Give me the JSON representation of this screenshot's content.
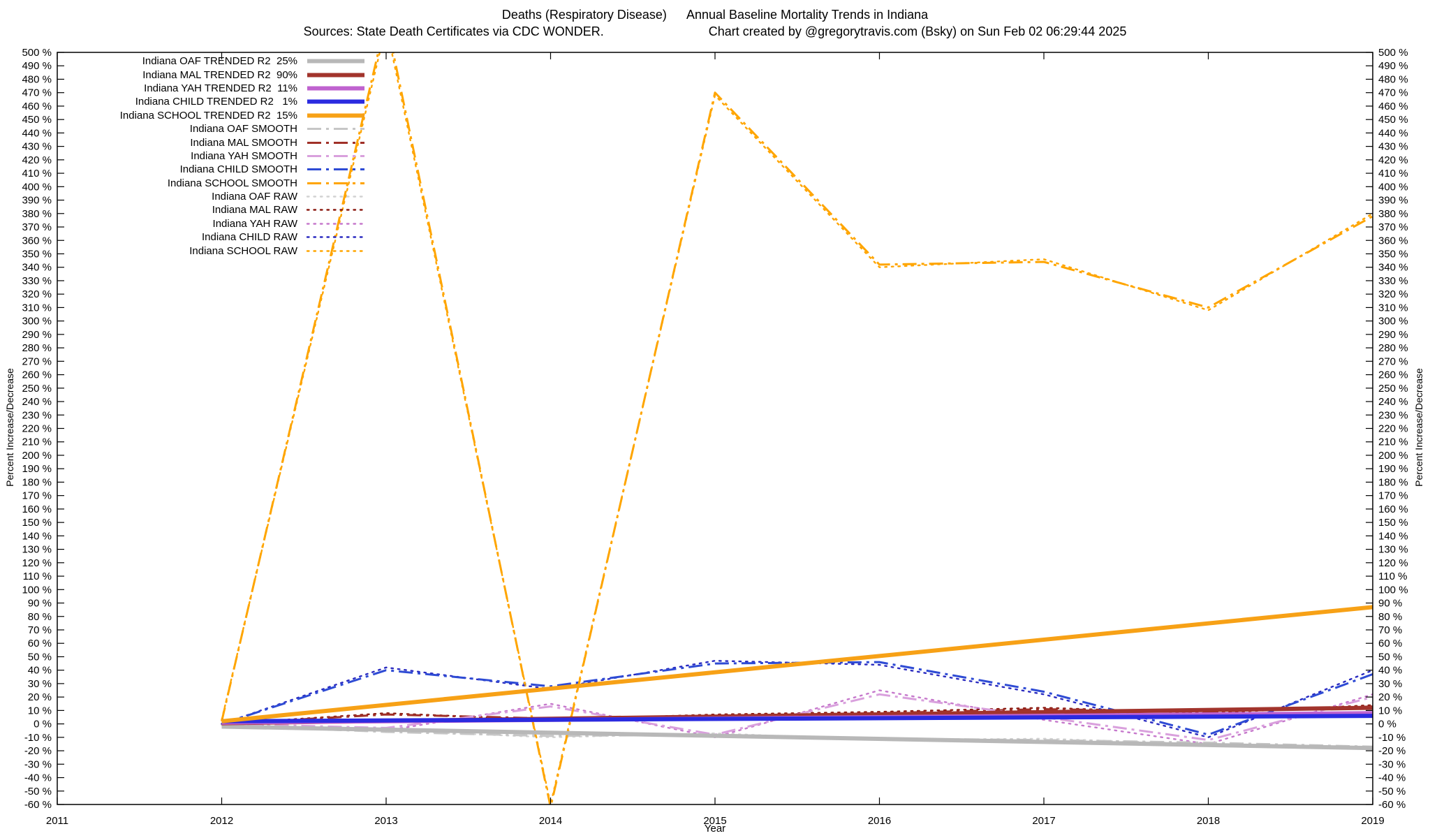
{
  "header": {
    "title_left": "Deaths (Respiratory Disease)",
    "title_right": "Annual Baseline Mortality Trends in Indiana",
    "subtitle_left": "Sources: State Death Certificates via CDC WONDER.",
    "subtitle_right": "Chart created by @gregorytravis.com (Bsky) on Sun Feb 02 06:29:44 2025"
  },
  "axes": {
    "ylabel_left": "Percent Increase/Decrease",
    "ylabel_right": "Percent Increase/Decrease",
    "xlabel": "Year"
  },
  "legend": {
    "items": [
      {
        "label": "Indiana OAF TRENDED R2  25%",
        "series": "oaf_trended"
      },
      {
        "label": "Indiana MAL TRENDED R2  90%",
        "series": "mal_trended"
      },
      {
        "label": "Indiana YAH TRENDED R2  11%",
        "series": "yah_trended"
      },
      {
        "label": "Indiana CHILD TRENDED R2   1%",
        "series": "child_trended"
      },
      {
        "label": "Indiana SCHOOL TRENDED R2  15%",
        "series": "school_trended"
      },
      {
        "label": "Indiana OAF SMOOTH",
        "series": "oaf_smooth"
      },
      {
        "label": "Indiana MAL SMOOTH",
        "series": "mal_smooth"
      },
      {
        "label": "Indiana YAH SMOOTH",
        "series": "yah_smooth"
      },
      {
        "label": "Indiana CHILD SMOOTH",
        "series": "child_smooth"
      },
      {
        "label": "Indiana SCHOOL SMOOTH",
        "series": "school_smooth"
      },
      {
        "label": "Indiana OAF RAW",
        "series": "oaf_raw"
      },
      {
        "label": "Indiana MAL RAW",
        "series": "mal_raw"
      },
      {
        "label": "Indiana YAH RAW",
        "series": "yah_raw"
      },
      {
        "label": "Indiana CHILD RAW",
        "series": "child_raw"
      },
      {
        "label": "Indiana SCHOOL RAW",
        "series": "school_raw"
      }
    ]
  },
  "chart_data": {
    "type": "line",
    "title": "Deaths (Respiratory Disease)  Annual Baseline Mortality Trends in Indiana",
    "subtitle": "Sources: State Death Certificates via CDC WONDER.  Chart created by @gregorytravis.com (Bsky) on Sun Feb 02 06:29:44 2025",
    "xlabel": "Year",
    "ylabel": "Percent Increase/Decrease",
    "xlim": [
      2011,
      2019
    ],
    "ylim": [
      -60,
      500
    ],
    "x_ticks": [
      2011,
      2012,
      2013,
      2014,
      2015,
      2016,
      2017,
      2018,
      2019
    ],
    "y_tick_step": 10,
    "y_tick_suffix": " %",
    "y_ticks": [
      500,
      490,
      480,
      470,
      460,
      450,
      440,
      430,
      420,
      410,
      400,
      390,
      380,
      370,
      360,
      350,
      340,
      330,
      320,
      310,
      300,
      290,
      280,
      270,
      260,
      250,
      240,
      230,
      220,
      210,
      200,
      190,
      180,
      170,
      160,
      150,
      140,
      130,
      120,
      110,
      100,
      90,
      80,
      70,
      60,
      50,
      40,
      30,
      20,
      10,
      0,
      -10,
      -20,
      -30,
      -40,
      -50,
      -60
    ],
    "grid": false,
    "legend_position": "top-left",
    "series": [
      {
        "name": "oaf_raw",
        "label": "Indiana OAF RAW",
        "group": "raw",
        "color": "#d2d2d2",
        "x": [
          2012,
          2013,
          2014,
          2015,
          2016,
          2017,
          2018,
          2019
        ],
        "y": [
          -1,
          -5,
          -10,
          -7,
          -12,
          -11,
          -15,
          -18
        ]
      },
      {
        "name": "mal_raw",
        "label": "Indiana MAL RAW",
        "group": "raw",
        "color": "#8b1a10",
        "x": [
          2012,
          2013,
          2014,
          2015,
          2016,
          2017,
          2018,
          2019
        ],
        "y": [
          0,
          8,
          3,
          7,
          9,
          12,
          8,
          14
        ]
      },
      {
        "name": "yah_raw",
        "label": "Indiana YAH RAW",
        "group": "raw",
        "color": "#c678cc",
        "x": [
          2012,
          2013,
          2014,
          2015,
          2016,
          2017,
          2018,
          2019
        ],
        "y": [
          0,
          -5,
          15,
          -10,
          25,
          3,
          -15,
          22
        ]
      },
      {
        "name": "child_raw",
        "label": "Indiana CHILD RAW",
        "group": "raw",
        "color": "#2a2ac0",
        "x": [
          2012,
          2013,
          2014,
          2015,
          2016,
          2017,
          2018,
          2019
        ],
        "y": [
          0,
          42,
          26,
          47,
          44,
          22,
          -10,
          40
        ]
      },
      {
        "name": "school_raw",
        "label": "Indiana SCHOOL RAW",
        "group": "raw",
        "color": "#ffa500",
        "x": [
          2012,
          2013,
          2014,
          2015,
          2016,
          2017,
          2018,
          2019
        ],
        "y": [
          3,
          520,
          -60,
          468,
          340,
          346,
          308,
          380
        ]
      },
      {
        "name": "oaf_smooth",
        "label": "Indiana OAF SMOOTH",
        "group": "smooth",
        "color": "#c6c6c6",
        "x": [
          2012,
          2013,
          2014,
          2015,
          2016,
          2017,
          2018,
          2019
        ],
        "y": [
          -1,
          -6,
          -9,
          -8,
          -11,
          -12,
          -14,
          -17
        ]
      },
      {
        "name": "mal_smooth",
        "label": "Indiana MAL SMOOTH",
        "group": "smooth",
        "color": "#a03028",
        "x": [
          2012,
          2013,
          2014,
          2015,
          2016,
          2017,
          2018,
          2019
        ],
        "y": [
          0,
          7,
          4,
          6,
          8,
          11,
          9,
          13
        ]
      },
      {
        "name": "yah_smooth",
        "label": "Indiana YAH SMOOTH",
        "group": "smooth",
        "color": "#d9a0dd",
        "x": [
          2012,
          2013,
          2014,
          2015,
          2016,
          2017,
          2018,
          2019
        ],
        "y": [
          0,
          -3,
          13,
          -8,
          22,
          5,
          -12,
          20
        ]
      },
      {
        "name": "child_smooth",
        "label": "Indiana CHILD SMOOTH",
        "group": "smooth",
        "color": "#2e4bd4",
        "x": [
          2012,
          2013,
          2014,
          2015,
          2016,
          2017,
          2018,
          2019
        ],
        "y": [
          0,
          40,
          28,
          45,
          46,
          24,
          -8,
          37
        ]
      },
      {
        "name": "school_smooth",
        "label": "Indiana SCHOOL SMOOTH",
        "group": "smooth",
        "color": "#ffa500",
        "x": [
          2012,
          2013,
          2014,
          2015,
          2016,
          2017,
          2018,
          2019
        ],
        "y": [
          2,
          525,
          -62,
          470,
          342,
          344,
          310,
          378
        ]
      },
      {
        "name": "oaf_trended",
        "label": "Indiana OAF TRENDED R2  25%",
        "group": "trended",
        "color": "#b8b8b8",
        "x": [
          2012,
          2019
        ],
        "y": [
          -2,
          -18
        ]
      },
      {
        "name": "mal_trended",
        "label": "Indiana MAL TRENDED R2  90%",
        "group": "trended",
        "color": "#a2342c",
        "x": [
          2012,
          2019
        ],
        "y": [
          0.5,
          12
        ]
      },
      {
        "name": "yah_trended",
        "label": "Indiana YAH TRENDED R2  11%",
        "group": "trended",
        "color": "#bf62cf",
        "x": [
          2012,
          2019
        ],
        "y": [
          1,
          8
        ]
      },
      {
        "name": "child_trended",
        "label": "Indiana CHILD TRENDED R2   1%",
        "group": "trended",
        "color": "#2b2be0",
        "x": [
          2012,
          2019
        ],
        "y": [
          2,
          6
        ]
      },
      {
        "name": "school_trended",
        "label": "Indiana SCHOOL TRENDED R2  15%",
        "group": "trended",
        "color": "#f7a116",
        "x": [
          2012,
          2019
        ],
        "y": [
          2,
          87
        ]
      }
    ]
  }
}
